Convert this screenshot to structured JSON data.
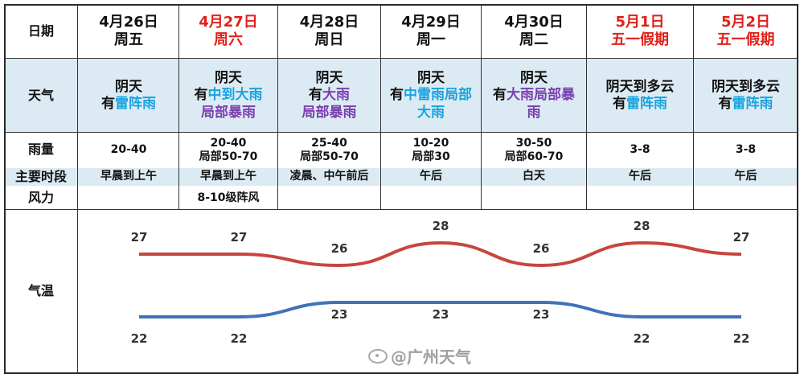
{
  "labels": {
    "date": "日期",
    "weather": "天气",
    "rain": "雨量",
    "period": "主要时段",
    "wind": "风力",
    "temp": "气温"
  },
  "days": [
    {
      "date": "4月26日",
      "weekday": "周五",
      "highlight": false,
      "weather": [
        [
          {
            "t": "阴天",
            "c": ""
          }
        ],
        [
          {
            "t": "有",
            "c": ""
          },
          {
            "t": "雷阵雨",
            "c": "blue"
          }
        ]
      ],
      "rain": [
        "20-40"
      ],
      "period": "早晨到上午",
      "wind": ""
    },
    {
      "date": "4月27日",
      "weekday": "周六",
      "highlight": true,
      "weather": [
        [
          {
            "t": "阴天",
            "c": ""
          }
        ],
        [
          {
            "t": "有",
            "c": ""
          },
          {
            "t": "中到大雨",
            "c": "blue"
          }
        ],
        [
          {
            "t": "局部暴雨",
            "c": "purple"
          }
        ]
      ],
      "rain": [
        "20-40",
        "局部50-70"
      ],
      "period": "早晨到上午",
      "wind": "8-10级阵风"
    },
    {
      "date": "4月28日",
      "weekday": "周日",
      "highlight": false,
      "weather": [
        [
          {
            "t": "阴天",
            "c": ""
          }
        ],
        [
          {
            "t": "有",
            "c": ""
          },
          {
            "t": "大雨",
            "c": "purple"
          }
        ],
        [
          {
            "t": "局部暴雨",
            "c": "purple"
          }
        ]
      ],
      "rain": [
        "25-40",
        "局部50-70"
      ],
      "period": "凌晨、中午前后",
      "wind": ""
    },
    {
      "date": "4月29日",
      "weekday": "周一",
      "highlight": false,
      "weather": [
        [
          {
            "t": "阴天",
            "c": ""
          }
        ],
        [
          {
            "t": "有",
            "c": ""
          },
          {
            "t": "中雷雨局部",
            "c": "blue"
          }
        ],
        [
          {
            "t": "大雨",
            "c": "blue"
          }
        ]
      ],
      "rain": [
        "10-20",
        "局部30"
      ],
      "period": "午后",
      "wind": ""
    },
    {
      "date": "4月30日",
      "weekday": "周二",
      "highlight": false,
      "weather": [
        [
          {
            "t": "阴天",
            "c": ""
          }
        ],
        [
          {
            "t": "有",
            "c": ""
          },
          {
            "t": "大雨局部暴",
            "c": "purple"
          }
        ],
        [
          {
            "t": "雨",
            "c": "purple"
          }
        ]
      ],
      "rain": [
        "30-50",
        "局部60-70"
      ],
      "period": "白天",
      "wind": ""
    },
    {
      "date": "5月1日",
      "weekday": "五一假期",
      "highlight": true,
      "weather": [
        [
          {
            "t": "阴天到多云",
            "c": ""
          }
        ],
        [
          {
            "t": "有",
            "c": ""
          },
          {
            "t": "雷阵雨",
            "c": "blue"
          }
        ]
      ],
      "rain": [
        "3-8"
      ],
      "period": "午后",
      "wind": ""
    },
    {
      "date": "5月2日",
      "weekday": "五一假期",
      "highlight": true,
      "weather": [
        [
          {
            "t": "阴天到多云",
            "c": ""
          }
        ],
        [
          {
            "t": "有",
            "c": ""
          },
          {
            "t": "雷阵雨",
            "c": "blue"
          }
        ]
      ],
      "rain": [
        "3-8"
      ],
      "period": "午后",
      "wind": ""
    }
  ],
  "chart_data": {
    "type": "line",
    "categories": [
      "4月26日",
      "4月27日",
      "4月28日",
      "4月29日",
      "4月30日",
      "5月1日",
      "5月2日"
    ],
    "series": [
      {
        "values": [
          27,
          27,
          26,
          28,
          26,
          28,
          27
        ],
        "color": "#c8453f"
      },
      {
        "values": [
          22,
          22,
          23,
          23,
          23,
          22,
          22
        ],
        "color": "#3f72b8"
      }
    ],
    "data_labels": true,
    "grid": false
  },
  "watermark": "@广州天气",
  "colors": {
    "red": "#e0201a",
    "blue": "#1aa3e0",
    "purple": "#7b3fb0",
    "band": "#dcebf3",
    "high_line": "#c8453f",
    "low_line": "#3f72b8"
  }
}
